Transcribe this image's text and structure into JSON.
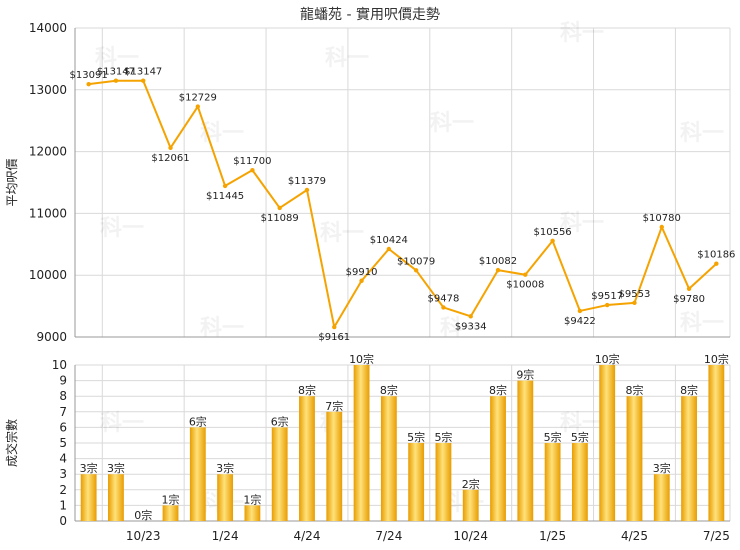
{
  "title": "龍蟠苑 - 實用呎價走勢",
  "watermark": "科一",
  "colors": {
    "line": "#f5a300",
    "bar_light": "#ffe27a",
    "bar_dark": "#e89c00",
    "grid": "#d9d9d9"
  },
  "chart_data": [
    {
      "type": "line",
      "ylabel": "平均呎價",
      "ylim": [
        9000,
        14000
      ],
      "yticks": [
        9000,
        10000,
        11000,
        12000,
        13000,
        14000
      ],
      "grid": true,
      "x": [
        "2023-08",
        "2023-09",
        "2023-10",
        "2023-11",
        "2023-12",
        "2024-01",
        "2024-02",
        "2024-03",
        "2024-04",
        "2024-05",
        "2024-06",
        "2024-07",
        "2024-08",
        "2024-09",
        "2024-10",
        "2024-11",
        "2024-12",
        "2025-01",
        "2025-02",
        "2025-03",
        "2025-04",
        "2025-05",
        "2025-06",
        "2025-07"
      ],
      "values": [
        13091,
        13147,
        13147,
        12061,
        12729,
        11445,
        11700,
        11089,
        11379,
        9161,
        9910,
        10424,
        10079,
        9478,
        9334,
        10082,
        10008,
        10556,
        9422,
        9517,
        9553,
        10780,
        9780,
        10186
      ],
      "labels": [
        "$13091",
        "$13147",
        "$13147",
        "$12061",
        "$12729",
        "$11445",
        "$11700",
        "$11089",
        "$11379",
        "$9161",
        "$9910",
        "$10424",
        "$10079",
        "$9478",
        "$9334",
        "$10082",
        "$10008",
        "$10556",
        "$9422",
        "$9517",
        "$9553",
        "$10780",
        "$9780",
        "$10186"
      ]
    },
    {
      "type": "bar",
      "ylabel": "成交宗數",
      "ylim": [
        0,
        10
      ],
      "yticks": [
        0,
        1,
        2,
        3,
        4,
        5,
        6,
        7,
        8,
        9,
        10
      ],
      "grid": true,
      "categories": [
        "2023-08",
        "2023-09",
        "2023-10",
        "2023-11",
        "2023-12",
        "2024-01",
        "2024-02",
        "2024-03",
        "2024-04",
        "2024-05",
        "2024-06",
        "2024-07",
        "2024-08",
        "2024-09",
        "2024-10",
        "2024-11",
        "2024-12",
        "2025-01",
        "2025-02",
        "2025-03",
        "2025-04",
        "2025-05",
        "2025-06",
        "2025-07"
      ],
      "values": [
        3,
        3,
        0,
        1,
        6,
        3,
        1,
        6,
        8,
        7,
        10,
        8,
        5,
        5,
        2,
        8,
        9,
        5,
        5,
        10,
        8,
        3,
        8,
        10
      ],
      "labels": [
        "3宗",
        "3宗",
        "0宗",
        "1宗",
        "6宗",
        "3宗",
        "1宗",
        "6宗",
        "8宗",
        "7宗",
        "10宗",
        "8宗",
        "5宗",
        "5宗",
        "2宗",
        "8宗",
        "9宗",
        "5宗",
        "5宗",
        "10宗",
        "8宗",
        "3宗",
        "8宗",
        "10宗"
      ],
      "xtick_labels": [
        "10/23",
        "1/24",
        "4/24",
        "7/24",
        "10/24",
        "1/25",
        "4/25",
        "7/25"
      ]
    }
  ]
}
